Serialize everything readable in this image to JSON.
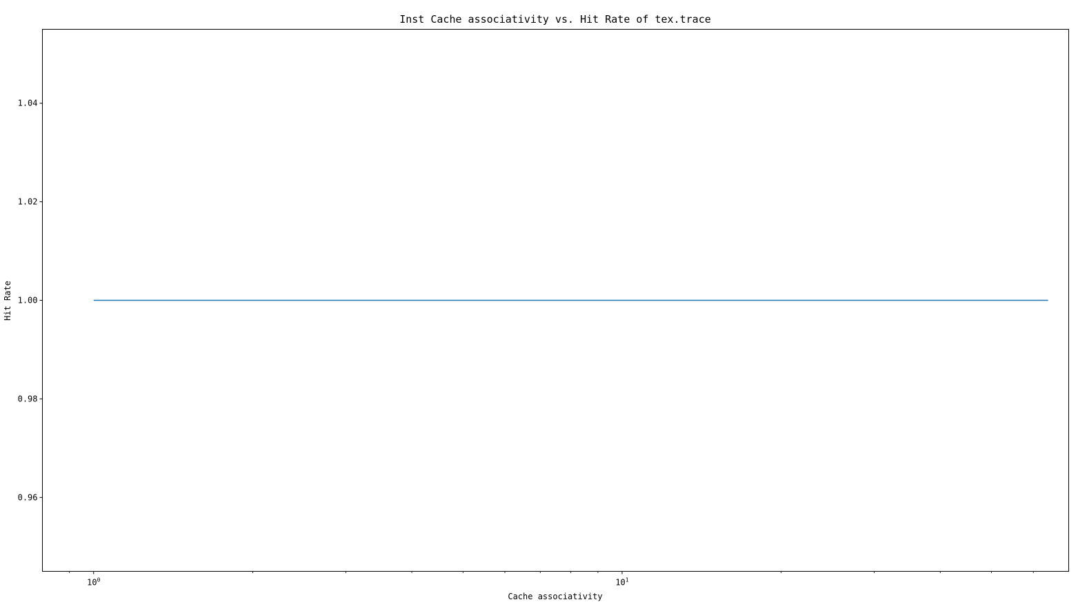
{
  "chart_data": {
    "type": "line",
    "title": "Inst Cache associativity vs. Hit Rate of tex.trace",
    "xlabel": "Cache associativity",
    "ylabel": "Hit Rate",
    "x_scale": "log",
    "xlim": [
      0.8,
      70
    ],
    "ylim": [
      0.945,
      1.055
    ],
    "x_major_ticks": [
      {
        "value": 1,
        "base": "10",
        "exp": "0"
      },
      {
        "value": 10,
        "base": "10",
        "exp": "1"
      }
    ],
    "x_minor_ticks": [
      0.9,
      2,
      3,
      4,
      5,
      6,
      7,
      8,
      9,
      20,
      30,
      40,
      50,
      60
    ],
    "y_ticks": [
      {
        "value": 0.96,
        "label": "0.96"
      },
      {
        "value": 0.98,
        "label": "0.98"
      },
      {
        "value": 1.0,
        "label": "1.00"
      },
      {
        "value": 1.02,
        "label": "1.02"
      },
      {
        "value": 1.04,
        "label": "1.04"
      }
    ],
    "grid": false,
    "series": [
      {
        "color": "#1f77b4",
        "x": [
          1,
          2,
          4,
          8,
          16,
          32,
          64
        ],
        "y": [
          1.0,
          1.0,
          1.0,
          1.0,
          1.0,
          1.0,
          1.0
        ]
      }
    ]
  }
}
